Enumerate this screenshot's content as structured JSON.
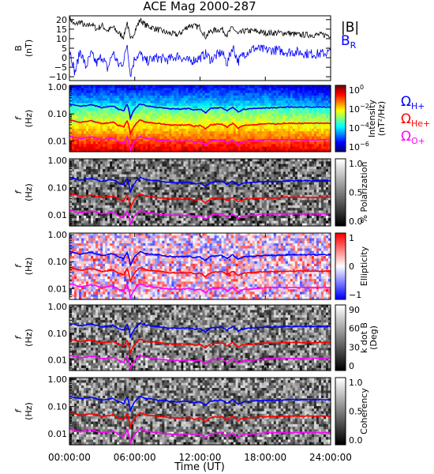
{
  "title": "ACE Mag 2000-287",
  "chart_data": {
    "type": "line",
    "x_label": "Time (UT)",
    "x_ticks": [
      "00:00:00",
      "06:00:00",
      "12:00:00",
      "18:00:00",
      "24:00:00"
    ],
    "x_tick_hours": [
      0,
      6,
      12,
      18,
      24
    ],
    "xlim_hours": [
      0,
      24
    ],
    "panels": [
      {
        "id": "field",
        "type": "line",
        "ylabel": "B\n(nT)",
        "ylim": [
          -12,
          22
        ],
        "y_ticks": [
          -10,
          -5,
          0,
          5,
          10,
          15,
          20
        ],
        "y_tick_labels": [
          "−10",
          "−5",
          "0",
          "5",
          "10",
          "15",
          "20"
        ],
        "legend": [
          {
            "label": "|B|",
            "color": "#000000"
          },
          {
            "label": "B",
            "sub": "R",
            "color": "#0000ff"
          }
        ],
        "series": [
          {
            "name": "|B|",
            "color": "#000000",
            "x": [
              0.0,
              0.5,
              1.0,
              1.5,
              2.0,
              2.5,
              3.0,
              3.5,
              4.0,
              4.5,
              5.0,
              5.3,
              5.6,
              6.0,
              6.5,
              7.0,
              8.0,
              9.0,
              10.0,
              11.0,
              12.0,
              12.5,
              13.0,
              14.0,
              14.5,
              15.0,
              15.5,
              16.0,
              17.0,
              18.0,
              19.0,
              20.0,
              21.0,
              22.0,
              23.0,
              24.0
            ],
            "y": [
              21,
              17,
              19,
              16,
              18,
              15,
              17,
              14,
              16,
              13,
              11,
              19,
              9,
              14,
              20,
              17,
              15,
              13,
              12,
              17,
              16,
              11,
              14,
              15,
              12,
              16,
              12,
              14,
              14,
              13,
              13,
              13,
              12,
              12,
              12,
              12
            ]
          },
          {
            "name": "B_R",
            "color": "#0000ff",
            "x": [
              0.0,
              0.5,
              1.0,
              1.5,
              2.0,
              2.5,
              3.0,
              3.5,
              4.0,
              4.5,
              5.0,
              5.3,
              5.6,
              6.0,
              6.5,
              7.0,
              8.0,
              9.0,
              10.0,
              11.0,
              12.0,
              12.5,
              13.0,
              14.0,
              14.5,
              15.0,
              15.5,
              16.0,
              17.0,
              18.0,
              19.0,
              20.0,
              21.0,
              22.0,
              23.0,
              24.0
            ],
            "y": [
              5,
              -8,
              4,
              -5,
              2,
              -3,
              1,
              -6,
              3,
              -4,
              -2,
              8,
              -9,
              0,
              2,
              -2,
              0,
              -1,
              1,
              -2,
              0,
              2,
              -1,
              3,
              -3,
              6,
              -2,
              2,
              5,
              4,
              4,
              3,
              3,
              2,
              2,
              3
            ]
          }
        ]
      },
      {
        "id": "intensity",
        "type": "heatmap",
        "ylabel": "f\n(Hz)",
        "y_ticks": [
          0.01,
          0.1,
          1.0
        ],
        "y_tick_labels": [
          "0.01",
          "0.10",
          "1.00"
        ],
        "colorbar": {
          "label": "Intensity\n(nT²/Hz)",
          "ticks": [
            "10",
            "10",
            "10",
            "10"
          ],
          "exponents": [
            "0",
            "−2",
            "−4",
            "−6"
          ],
          "scale": "rainbow"
        },
        "cyclotron_legend": [
          {
            "label": "Ω",
            "sub": "H+",
            "color": "#0000ff"
          },
          {
            "label": "Ω",
            "sub": "He+",
            "color": "#ff0000"
          },
          {
            "label": "Ω",
            "sub": "O+",
            "color": "#ff00ff"
          }
        ]
      },
      {
        "id": "polarization",
        "type": "heatmap",
        "ylabel": "f\n(Hz)",
        "y_ticks": [
          0.01,
          0.1,
          1.0
        ],
        "y_tick_labels": [
          "0.01",
          "0.10",
          "1.00"
        ],
        "colorbar": {
          "label": "% Polarization",
          "ticks": [
            "1.0",
            "0.5",
            "0.0"
          ],
          "scale": "gray"
        }
      },
      {
        "id": "ellipticity",
        "type": "heatmap",
        "ylabel": "f\n(Hz)",
        "y_ticks": [
          0.01,
          0.1,
          1.0
        ],
        "y_tick_labels": [
          "0.01",
          "0.10",
          "1.00"
        ],
        "colorbar": {
          "label": "Ellipticity",
          "ticks": [
            "1",
            "0",
            "−1"
          ],
          "scale": "bwr"
        }
      },
      {
        "id": "kdotb",
        "type": "heatmap",
        "ylabel": "f\n(Hz)",
        "y_ticks": [
          0.01,
          0.1,
          1.0
        ],
        "y_tick_labels": [
          "0.01",
          "0.10",
          "1.00"
        ],
        "colorbar": {
          "label": "k dot B\n(Deg)",
          "ticks": [
            "90",
            "60",
            "30",
            "0"
          ],
          "scale": "gray"
        }
      },
      {
        "id": "coherency",
        "type": "heatmap",
        "ylabel": "f\n(Hz)",
        "y_ticks": [
          0.01,
          0.1,
          1.0
        ],
        "y_tick_labels": [
          "0.01",
          "0.10",
          "1.00"
        ],
        "colorbar": {
          "label": "Coherency",
          "ticks": [
            "1.0",
            "0.5",
            "0.0"
          ],
          "scale": "gray"
        }
      }
    ],
    "cyclotron_curves": {
      "x": [
        0,
        1,
        2,
        3,
        4,
        4.5,
        5,
        5.3,
        5.6,
        6,
        6.5,
        7,
        8,
        9,
        10,
        11,
        11.5,
        12,
        12.5,
        13,
        14,
        14.5,
        15,
        15.5,
        16,
        17,
        18,
        19,
        20,
        21,
        22,
        23,
        24
      ],
      "H+": [
        0.24,
        0.19,
        0.22,
        0.17,
        0.2,
        0.15,
        0.13,
        0.22,
        0.07,
        0.15,
        0.24,
        0.2,
        0.18,
        0.16,
        0.15,
        0.16,
        0.14,
        0.15,
        0.11,
        0.16,
        0.17,
        0.13,
        0.18,
        0.12,
        0.15,
        0.16,
        0.17,
        0.17,
        0.18,
        0.18,
        0.18,
        0.18,
        0.18
      ],
      "He+": [
        0.06,
        0.048,
        0.055,
        0.043,
        0.05,
        0.038,
        0.033,
        0.055,
        0.018,
        0.038,
        0.06,
        0.05,
        0.045,
        0.04,
        0.038,
        0.04,
        0.035,
        0.038,
        0.028,
        0.04,
        0.043,
        0.033,
        0.045,
        0.03,
        0.038,
        0.04,
        0.043,
        0.043,
        0.045,
        0.045,
        0.045,
        0.045,
        0.045
      ],
      "O+": [
        0.015,
        0.012,
        0.014,
        0.011,
        0.0125,
        0.0095,
        0.008,
        0.014,
        0.0045,
        0.0095,
        0.015,
        0.0125,
        0.011,
        0.01,
        0.0095,
        0.01,
        0.009,
        0.0095,
        0.007,
        0.01,
        0.011,
        0.008,
        0.011,
        0.0075,
        0.0095,
        0.01,
        0.011,
        0.011,
        0.011,
        0.011,
        0.011,
        0.011,
        0.011
      ]
    }
  }
}
